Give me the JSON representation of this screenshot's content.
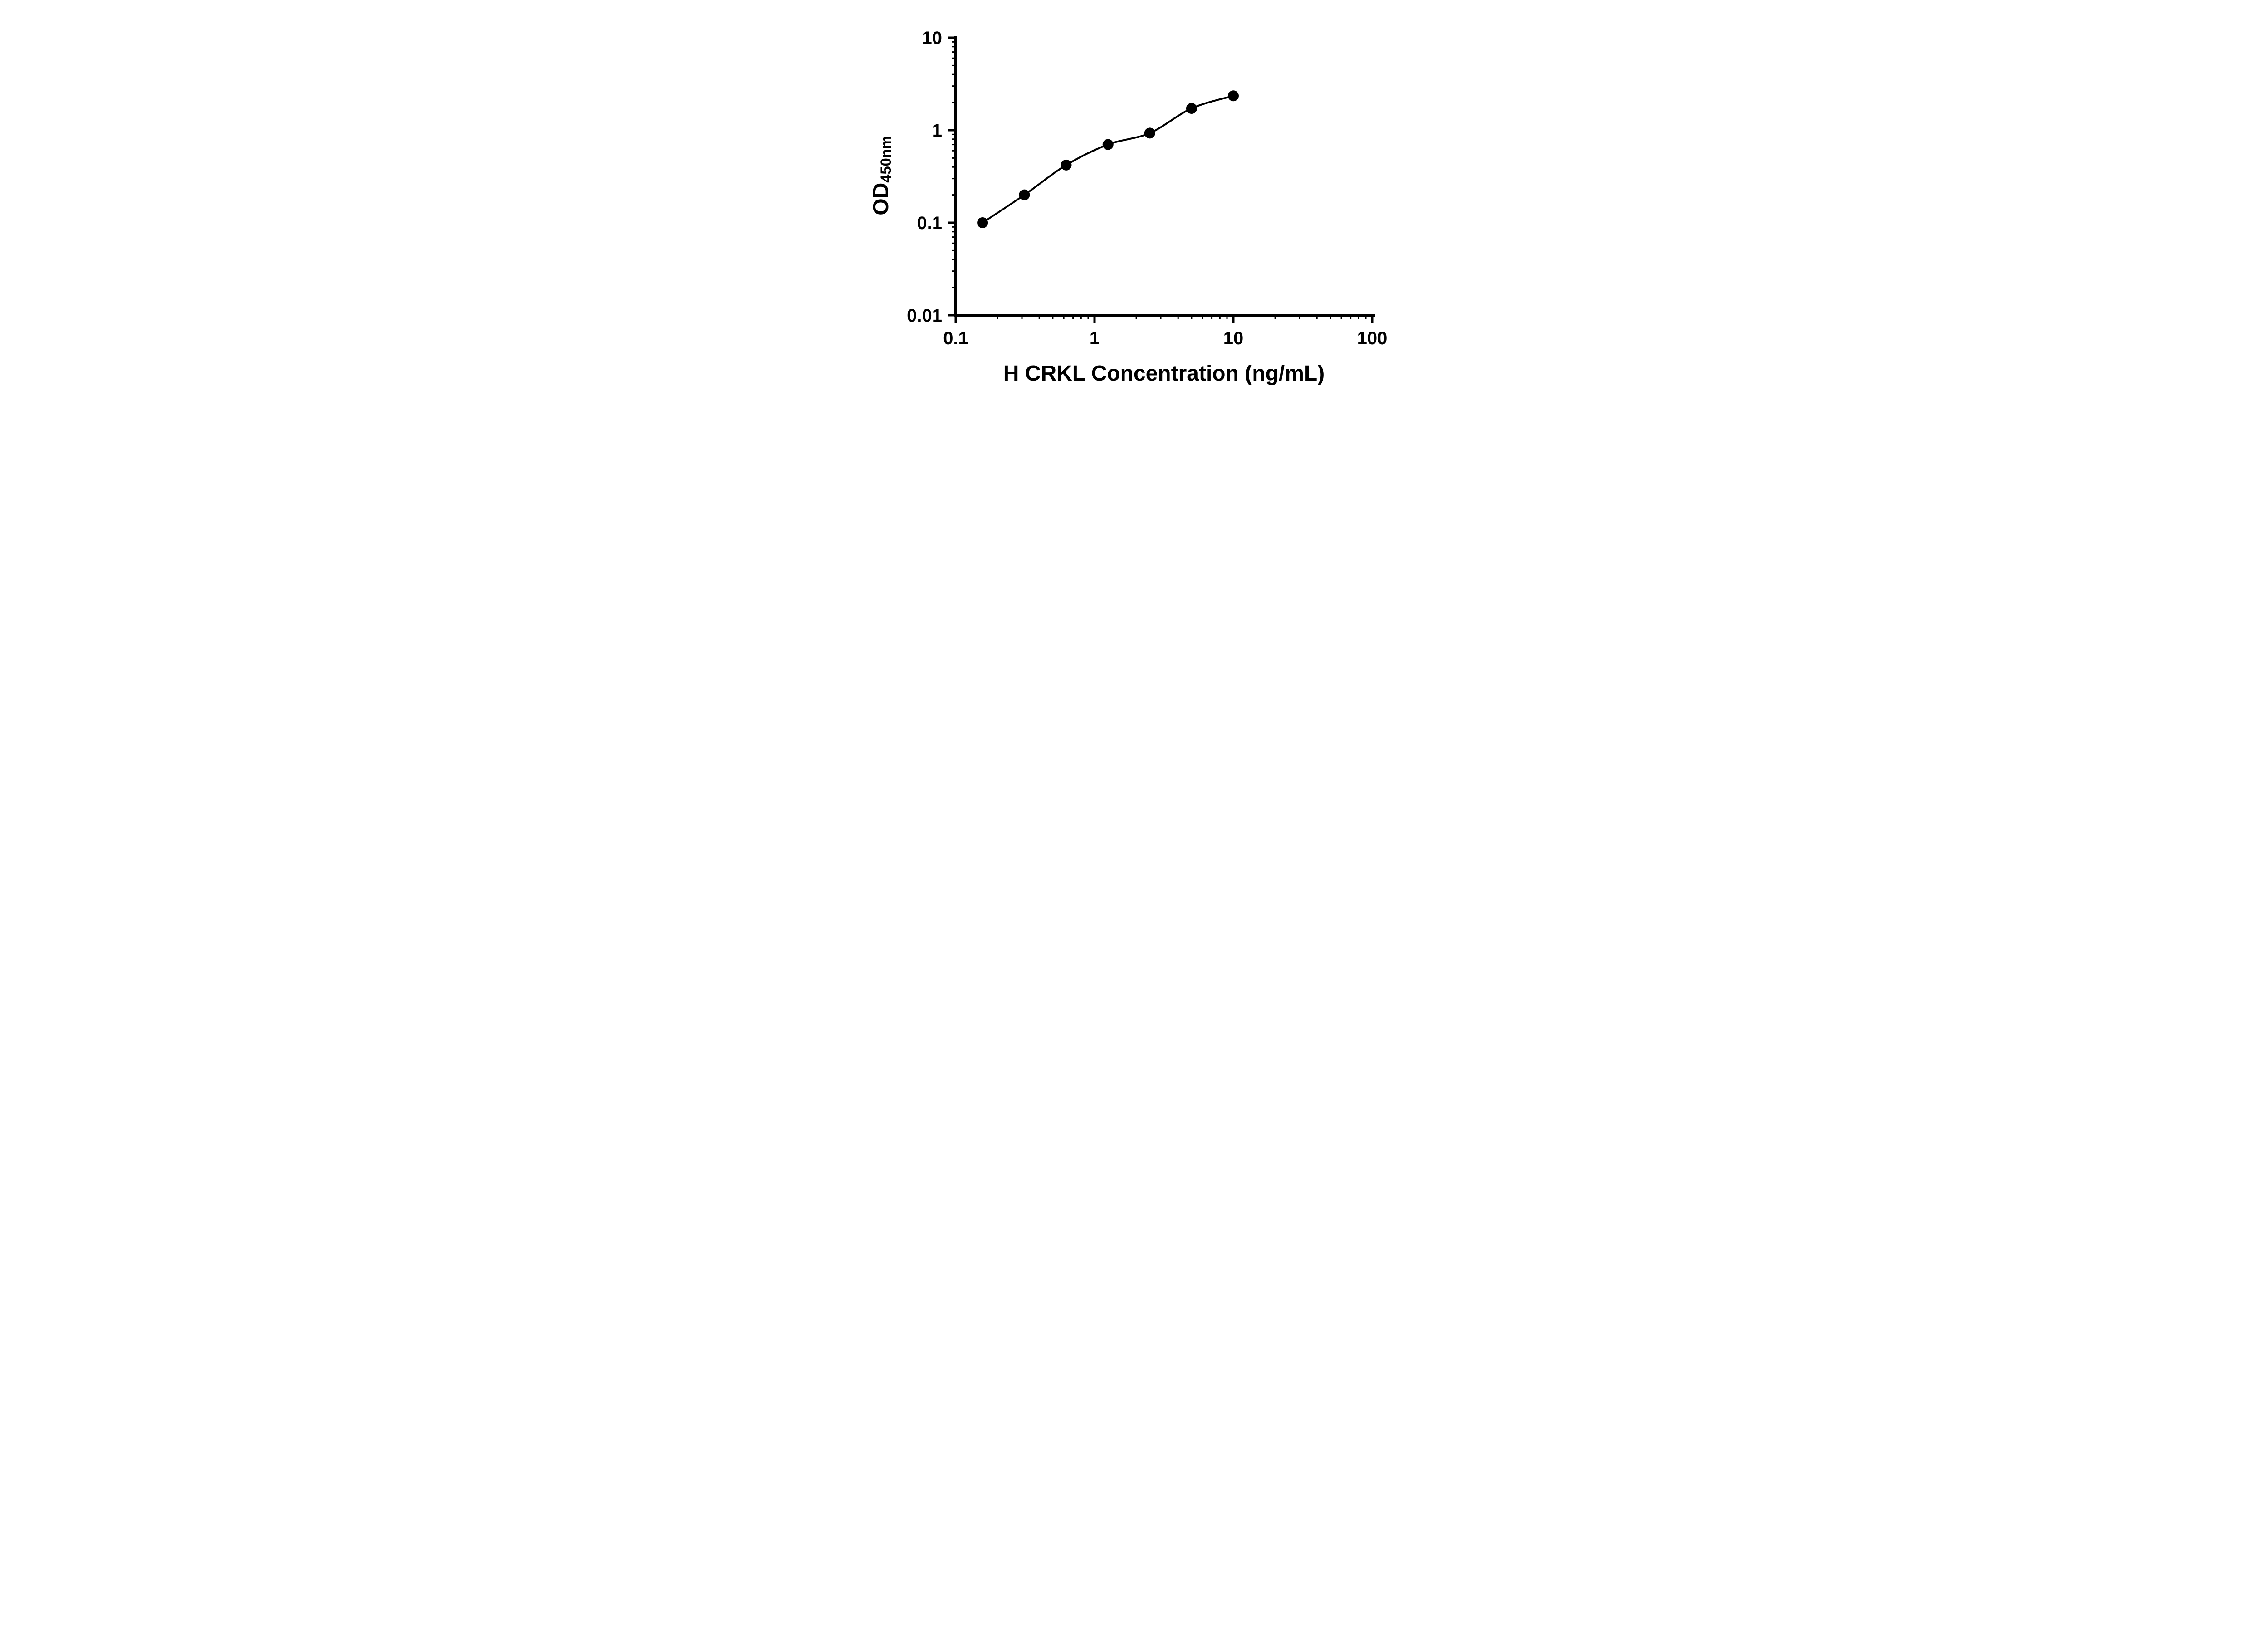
{
  "chart_data": {
    "type": "scatter",
    "title": "",
    "xlabel": "H CRKL Concentration (ng/mL)",
    "ylabel": {
      "main": "OD",
      "sub": "450nm"
    },
    "x_scale": "log",
    "y_scale": "log",
    "xlim": [
      0.1,
      100
    ],
    "ylim": [
      0.01,
      10
    ],
    "x_ticks": [
      {
        "v": 0.1,
        "label": "0.1"
      },
      {
        "v": 1,
        "label": "1"
      },
      {
        "v": 10,
        "label": "10"
      },
      {
        "v": 100,
        "label": "100"
      }
    ],
    "y_ticks": [
      {
        "v": 0.01,
        "label": "0.01"
      },
      {
        "v": 0.1,
        "label": "0.1"
      },
      {
        "v": 1,
        "label": "1"
      },
      {
        "v": 10,
        "label": "10"
      }
    ],
    "minor_ticks": true,
    "grid": false,
    "legend": "none",
    "line_color": "#000000",
    "marker_color": "#000000",
    "series": [
      {
        "marker": "circle",
        "fit": "smooth-curve",
        "x": [
          0.156,
          0.3125,
          0.625,
          1.25,
          2.5,
          5,
          10
        ],
        "y": [
          0.1,
          0.2,
          0.42,
          0.7,
          0.93,
          1.72,
          2.35
        ]
      }
    ]
  }
}
